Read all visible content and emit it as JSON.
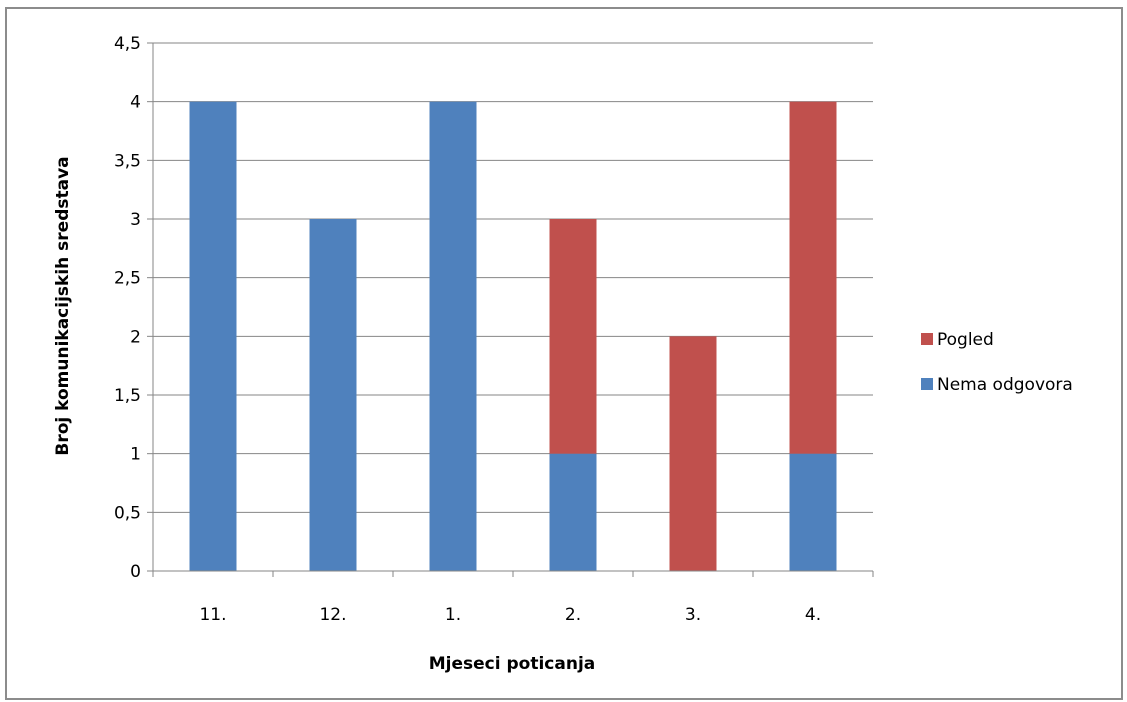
{
  "chart_data": {
    "type": "bar",
    "stacked": true,
    "categories": [
      "11.",
      "12.",
      "1.",
      "2.",
      "3.",
      "4."
    ],
    "series": [
      {
        "name": "Nema odgovora",
        "color": "#4f81bd",
        "values": [
          4,
          3,
          4,
          1,
          0,
          1
        ]
      },
      {
        "name": "Pogled",
        "color": "#c0504d",
        "values": [
          0,
          0,
          0,
          2,
          2,
          3
        ]
      }
    ],
    "title": "",
    "xlabel": "Mjeseci poticanja",
    "ylabel": "Broj komunikacijskih  sredstava",
    "ylim": [
      0,
      4.5
    ],
    "yticks": [
      "0",
      "0,5",
      "1",
      "1,5",
      "2",
      "2,5",
      "3",
      "3,5",
      "4",
      "4,5"
    ],
    "grid": true,
    "legend_position": "right",
    "legend_order": [
      "Pogled",
      "Nema odgovora"
    ],
    "gridline_color": "#868686"
  }
}
